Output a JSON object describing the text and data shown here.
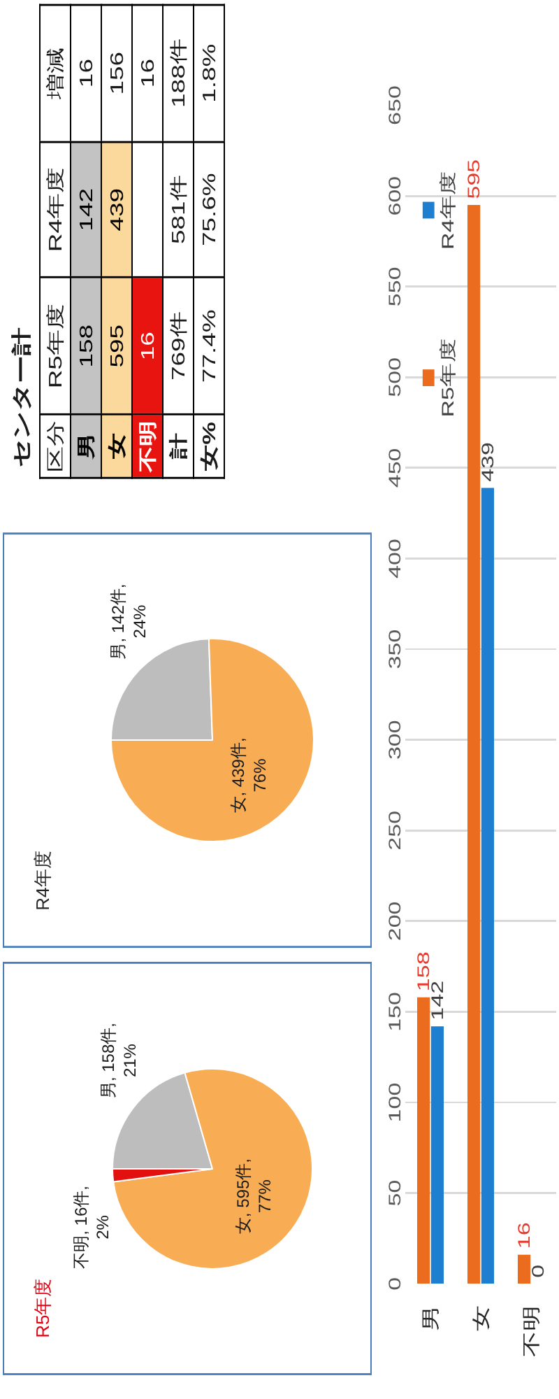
{
  "chart_data": [
    {
      "type": "pie",
      "title": "R5年度",
      "categories": [
        null,
        null,
        null
      ],
      "values": [
        158,
        595,
        16
      ],
      "colors": [
        "#bdbdbd",
        "#f8ac54",
        "#e2100f"
      ],
      "value_labels": [
        "男, 158件, 21%",
        "女, 595件, 77%",
        "不明, 16件, 2%"
      ]
    },
    {
      "type": "pie",
      "title": "R4年度",
      "categories": [
        null,
        null
      ],
      "values": [
        142,
        439
      ],
      "colors": [
        "#bdbdbd",
        "#f8ac54"
      ],
      "value_labels": [
        "男, 142件, 24%",
        "女, 439件, 76%"
      ]
    },
    {
      "type": "other",
      "title": "センター計",
      "ylabel": "区分",
      "categories": [
        "R5年度",
        "R4年度",
        "増減"
      ],
      "y_categories": [
        "男",
        "女",
        "不明",
        "計",
        "女%"
      ],
      "cell_labels": [
        [
          "158",
          "142",
          "16"
        ],
        [
          "595",
          "439",
          "156"
        ],
        [
          "16",
          null,
          "16"
        ],
        [
          "769件",
          "581件",
          "188件"
        ],
        [
          "77.4%",
          "75.6%",
          "1.8%"
        ]
      ],
      "colors": [
        "#c3c3c3",
        "#fbd89c",
        "#e8140f",
        null,
        null
      ]
    },
    {
      "type": "bar",
      "categories": [
        "男",
        "女",
        "不明"
      ],
      "series": [
        {
          "name": "R5年度",
          "color": "#ec6c1f",
          "values": [
            158,
            595,
            16
          ]
        },
        {
          "name": "R4年度",
          "color": "#1e7fd0",
          "values": [
            142,
            439,
            0
          ]
        }
      ],
      "ylim": [
        0,
        650
      ],
      "yticks": [
        0,
        50,
        100,
        150,
        200,
        250,
        300,
        350,
        400,
        450,
        500,
        550,
        600,
        650
      ],
      "grid": "y",
      "legend": "top left",
      "data_labels": true
    }
  ]
}
